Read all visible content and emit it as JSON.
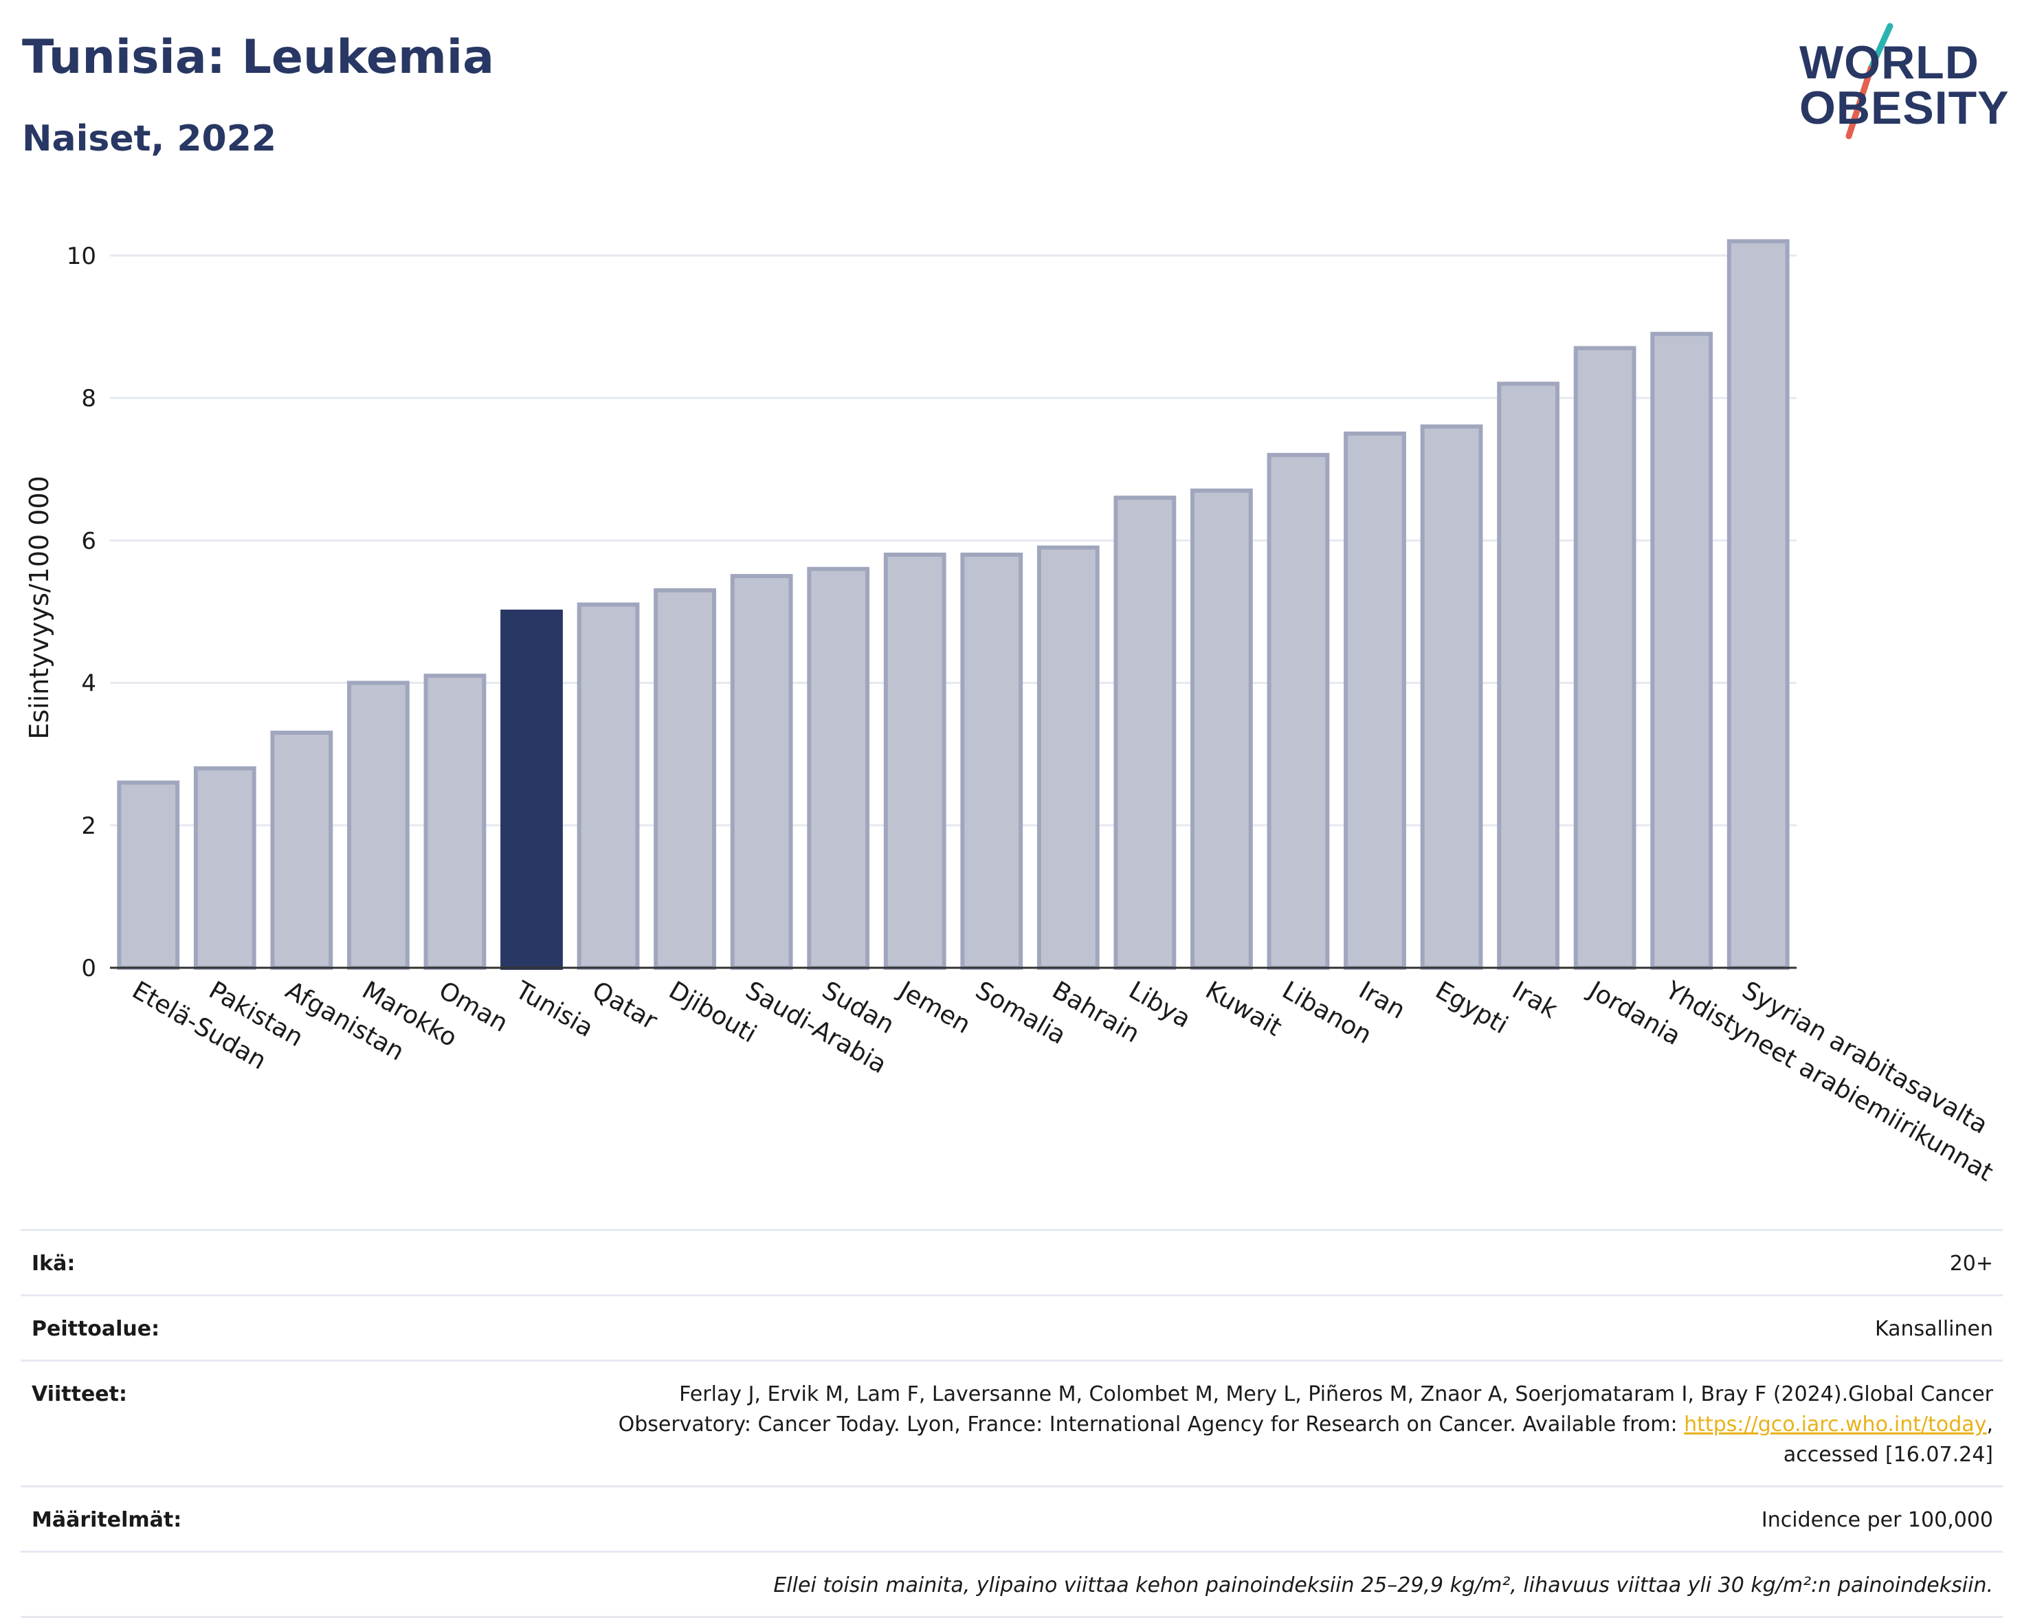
{
  "header": {
    "title": "Tunisia: Leukemia",
    "subtitle": "Naiset, 2022"
  },
  "logo": {
    "line1": "WORLD",
    "line2": "OBESITY",
    "accent_colors": [
      "#2bb3b1",
      "#e4604e"
    ]
  },
  "colors": {
    "highlight_bar": "#283763",
    "other_bar_fill": "#bfc3d1",
    "other_bar_stroke": "#a0a6bd",
    "title": "#283763",
    "gridline": "#e6e9f0"
  },
  "chart_data": {
    "type": "bar",
    "ylabel": "Esiintyvyys/100 000",
    "ylim": [
      0,
      10.5
    ],
    "yticks": [
      0,
      2,
      4,
      6,
      8,
      10
    ],
    "grid": true,
    "highlight": "Tunisia",
    "categories": [
      "Etelä-Sudan",
      "Pakistan",
      "Afganistan",
      "Marokko",
      "Oman",
      "Tunisia",
      "Qatar",
      "Djibouti",
      "Saudi-Arabia",
      "Sudan",
      "Jemen",
      "Somalia",
      "Bahrain",
      "Libya",
      "Kuwait",
      "Libanon",
      "Iran",
      "Egypti",
      "Irak",
      "Jordania",
      "Yhdistyneet arabiemiirikunnat",
      "Syyrian arabitasavalta"
    ],
    "values": [
      2.6,
      2.8,
      3.3,
      4.0,
      4.1,
      5.0,
      5.1,
      5.3,
      5.5,
      5.6,
      5.8,
      5.8,
      5.9,
      6.6,
      6.7,
      7.2,
      7.5,
      7.6,
      8.2,
      8.7,
      8.9,
      10.2
    ]
  },
  "info": {
    "age_label": "Ikä:",
    "age_value": "20+",
    "coverage_label": "Peittoalue:",
    "coverage_value": "Kansallinen",
    "references_label": "Viitteet:",
    "references_line1": "Ferlay J, Ervik M, Lam F, Laversanne M, Colombet M, Mery L, Piñeros M, Znaor A, Soerjomataram I, Bray F (2024).Global Cancer",
    "references_line2_pre": "Observatory: Cancer Today. Lyon, France: International Agency for Research on Cancer. Available from: ",
    "references_link": "https://gco.iarc.who.int/today",
    "references_line2_post": ",",
    "references_line3": "accessed [16.07.24]",
    "definitions_label": "Määritelmät:",
    "definitions_value": "Incidence per 100,000",
    "note": "Ellei toisin mainita, ylipaino viittaa kehon painoindeksiin 25–29,9 kg/m², lihavuus viittaa yli 30 kg/m²:n painoindeksiin."
  }
}
